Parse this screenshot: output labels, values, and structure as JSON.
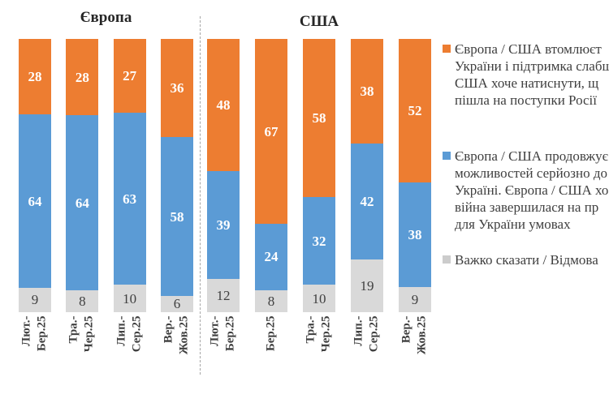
{
  "colors": {
    "orange": "#ED7D31",
    "blue": "#5B9BD5",
    "gray": "#D9D9D9",
    "legend_gray_swatch": "#CCCCCC",
    "value_light": "#FFFFFF",
    "value_dark": "#404040",
    "divider": "#A6A6A6"
  },
  "chart_data": {
    "type": "bar",
    "subtype": "stacked-100-percent",
    "legend_position": "right",
    "grid": false,
    "value_labels": "inside-segments",
    "series_keys": [
      "tired_of_war",
      "continue_support",
      "hard_to_say"
    ],
    "groups": [
      {
        "title": "Європа",
        "bars": [
          {
            "category_lines": [
              "Лют.-",
              "Бер.25"
            ],
            "values": {
              "tired_of_war": 28,
              "continue_support": 64,
              "hard_to_say": 9
            }
          },
          {
            "category_lines": [
              "Тра.-",
              "Чер.25"
            ],
            "values": {
              "tired_of_war": 28,
              "continue_support": 64,
              "hard_to_say": 8
            }
          },
          {
            "category_lines": [
              "Лип.-",
              "Сер.25"
            ],
            "values": {
              "tired_of_war": 27,
              "continue_support": 63,
              "hard_to_say": 10
            }
          },
          {
            "category_lines": [
              "Вер.-",
              "Жов.25"
            ],
            "values": {
              "tired_of_war": 36,
              "continue_support": 58,
              "hard_to_say": 6
            }
          }
        ]
      },
      {
        "title": "США",
        "bars": [
          {
            "category_lines": [
              "Лют.-",
              "Бер.25"
            ],
            "values": {
              "tired_of_war": 48,
              "continue_support": 39,
              "hard_to_say": 12
            }
          },
          {
            "category_lines": [
              "Бер.25"
            ],
            "values": {
              "tired_of_war": 67,
              "continue_support": 24,
              "hard_to_say": 8
            }
          },
          {
            "category_lines": [
              "Тра.-",
              "Чер.25"
            ],
            "values": {
              "tired_of_war": 58,
              "continue_support": 32,
              "hard_to_say": 10
            }
          },
          {
            "category_lines": [
              "Лип.-",
              "Сер.25"
            ],
            "values": {
              "tired_of_war": 38,
              "continue_support": 42,
              "hard_to_say": 19
            }
          },
          {
            "category_lines": [
              "Вер.-",
              "Жов.25"
            ],
            "values": {
              "tired_of_war": 52,
              "continue_support": 38,
              "hard_to_say": 9
            }
          }
        ]
      }
    ]
  },
  "legend": {
    "items": [
      {
        "swatch": "orange",
        "series_key": "tired_of_war",
        "lines": [
          "Європа / США втомлюєт",
          "України і підтримка слабш",
          "США хоче натиснути, щ",
          "пішла на поступки Росії"
        ]
      },
      {
        "swatch": "blue",
        "series_key": "continue_support",
        "lines": [
          "Європа / США продовжує",
          "можливостей серйозно до",
          "Україні. Європа / США хо",
          "війна завершилася на пр",
          "для України умовах"
        ]
      },
      {
        "swatch": "gray",
        "series_key": "hard_to_say",
        "lines": [
          "Важко сказати / Відмова"
        ]
      }
    ]
  }
}
